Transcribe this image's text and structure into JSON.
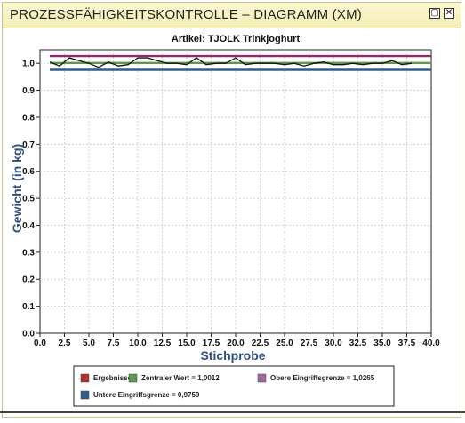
{
  "window": {
    "title": "PROZESSFÄHIGKEITSKONTROLLE – DIAGRAMM (XM)",
    "restore_icon": "restore-icon",
    "close_icon": "close-icon"
  },
  "chart_data": {
    "type": "line",
    "title": "Artikel: TJOLK Trinkjoghurt",
    "xlabel": "Stichprobe",
    "ylabel": "Gewicht (in kg)",
    "xlim": [
      0,
      40
    ],
    "ylim": [
      0,
      1.05
    ],
    "xticks": [
      "0.0",
      "2.5",
      "5.0",
      "7.5",
      "10.0",
      "12.5",
      "15.0",
      "17.5",
      "20.0",
      "22.5",
      "25.0",
      "27.5",
      "30.0",
      "32.5",
      "35.0",
      "37.5",
      "40.0"
    ],
    "yticks": [
      "0.0",
      "0.1",
      "0.2",
      "0.3",
      "0.4",
      "0.5",
      "0.6",
      "0.7",
      "0.8",
      "0.9",
      "1.0"
    ],
    "grid": true,
    "legend_position": "bottom",
    "series": [
      {
        "name": "Ergebnisse",
        "color": "#111111",
        "x": [
          1,
          2,
          3,
          4,
          5,
          6,
          7,
          8,
          9,
          10,
          11,
          12,
          13,
          14,
          15,
          16,
          17,
          18,
          19,
          20,
          21,
          22,
          23,
          24,
          25,
          26,
          27,
          28,
          29,
          30,
          31,
          32,
          33,
          34,
          35,
          36,
          37,
          38
        ],
        "values": [
          1.005,
          0.99,
          1.02,
          1.01,
          1.0,
          0.985,
          1.005,
          0.99,
          0.995,
          1.02,
          1.02,
          1.01,
          1.0,
          1.0,
          0.995,
          1.02,
          0.995,
          1.0,
          1.0,
          1.02,
          0.995,
          1.0,
          1.0,
          1.0,
          0.995,
          1.0,
          0.99,
          1.0,
          1.005,
          0.995,
          0.995,
          1.0,
          0.995,
          1.0,
          1.0,
          1.01,
          0.995,
          1.0
        ]
      },
      {
        "name": "Zentraler Wert = 1,0012",
        "color": "#5a9a4a",
        "x": [
          1,
          40
        ],
        "values": [
          1.0012,
          1.0012
        ]
      },
      {
        "name": "Obere Eingriffsgrenze = 1,0265",
        "color": "#8e2a6a",
        "x": [
          1,
          40
        ],
        "values": [
          1.0265,
          1.0265
        ]
      },
      {
        "name": "Untere Eingriffsgrenze = 0,9759",
        "color": "#2f5f8a",
        "x": [
          1,
          40
        ],
        "values": [
          0.9759,
          0.9759
        ]
      }
    ],
    "legend": [
      {
        "label": "Ergebnisse",
        "swatch": "#b03030"
      },
      {
        "label": "Zentraler Wert = 1,0012",
        "swatch": "#5a9a4a"
      },
      {
        "label": "Obere Eingriffsgrenze = 1,0265",
        "swatch": "#a06aa0"
      },
      {
        "label": "Untere Eingriffsgrenze = 0,9759",
        "swatch": "#2f5f8a"
      }
    ]
  }
}
